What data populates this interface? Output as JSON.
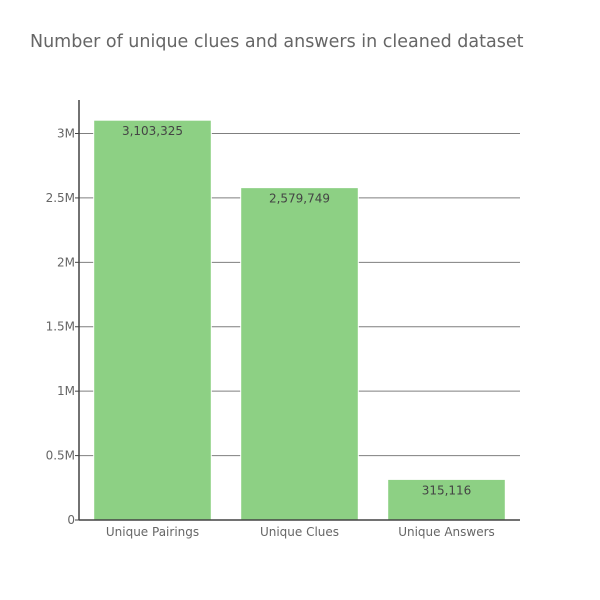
{
  "chart_data": {
    "type": "bar",
    "title": "Number of unique clues and answers in cleaned dataset",
    "xlabel": "",
    "ylabel": "",
    "categories": [
      "Unique Pairings",
      "Unique Clues",
      "Unique Answers"
    ],
    "values": [
      3103325,
      2579749,
      315116
    ],
    "data_labels": [
      "3,103,325",
      "2,579,749",
      "315,116"
    ],
    "ylim": [
      0,
      3260000
    ],
    "yticks": [
      0,
      500000,
      1000000,
      1500000,
      2000000,
      2500000,
      3000000
    ],
    "ytick_labels": [
      "0",
      "0.5M",
      "1M",
      "1.5M",
      "2M",
      "2.5M",
      "3M"
    ],
    "grid": true,
    "legend": "none",
    "colors": {
      "bar": "#8dd084",
      "bar_edge": "#ffffff",
      "grid": "#7f7f7f",
      "axis": "#444444",
      "text": "#666666"
    }
  }
}
